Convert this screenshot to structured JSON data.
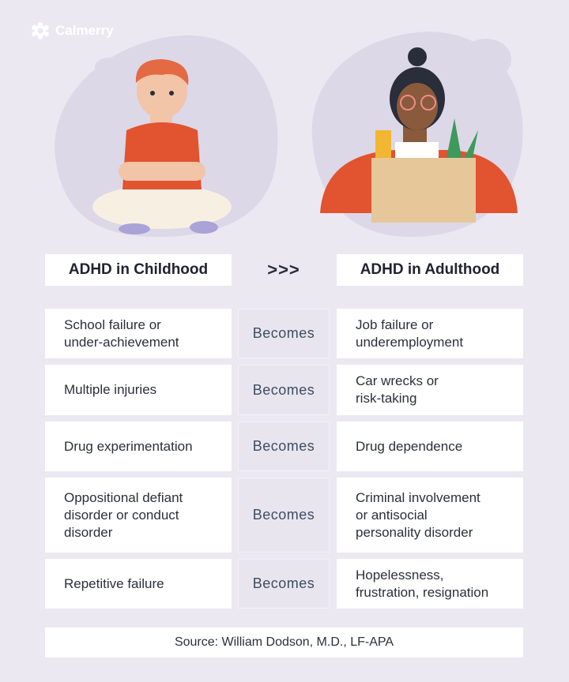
{
  "brand": {
    "name": "Calmerry",
    "icon": "flower-gear-icon"
  },
  "header": {
    "left": "ADHD in Childhood",
    "arrows": ">>>",
    "right": "ADHD in Adulthood"
  },
  "rows": [
    {
      "child": "School failure or\nunder-achievement",
      "link": "Becomes",
      "adult": "Job failure or\nunderemployment"
    },
    {
      "child": "Multiple injuries",
      "link": "Becomes",
      "adult": "Car wrecks or\nrisk-taking"
    },
    {
      "child": "Drug experimentation",
      "link": "Becomes",
      "adult": "Drug dependence"
    },
    {
      "child": "Oppositional defiant\ndisorder or conduct\ndisorder",
      "link": "Becomes",
      "adult": "Criminal involvement\nor antisocial\npersonality disorder"
    },
    {
      "child": "Repetitive failure",
      "link": "Becomes",
      "adult": "Hopelessness,\nfrustration, resignation"
    }
  ],
  "source": "Source: William Dodson, M.D., LF-APA",
  "colors": {
    "background": "#ebe8f2",
    "blob": "#dcd8e8",
    "becomes_text": "#3e4d60",
    "accent_orange": "#e2532f"
  }
}
